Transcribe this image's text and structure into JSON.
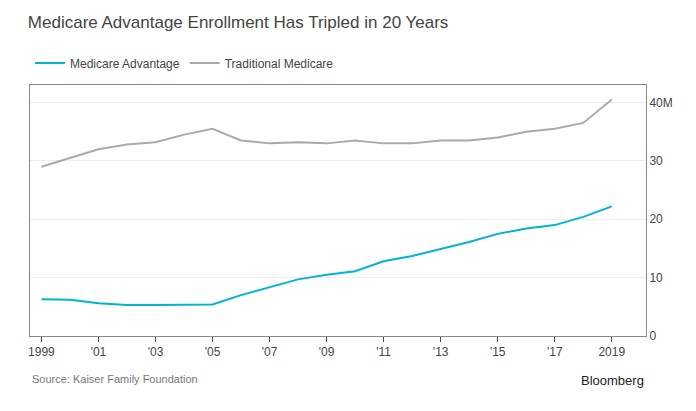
{
  "chart_data": {
    "type": "line",
    "title": "Medicare Advantage Enrollment Has Tripled in 20 Years",
    "annotations": [
      "Source: Kaiser Family Foundation",
      "Bloomberg"
    ],
    "x": [
      1999,
      2000,
      2001,
      2002,
      2003,
      2004,
      2005,
      2006,
      2007,
      2008,
      2009,
      2010,
      2011,
      2012,
      2013,
      2014,
      2015,
      2016,
      2017,
      2018,
      2019
    ],
    "series": [
      {
        "name": "Medicare Advantage",
        "color": "#00b4d8",
        "values": [
          6.3,
          6.2,
          5.6,
          5.3,
          5.3,
          5.4,
          5.4,
          7.0,
          8.3,
          9.7,
          10.5,
          11.1,
          12.8,
          13.7,
          14.9,
          16.1,
          17.5,
          18.4,
          19.0,
          20.4,
          22.2
        ]
      },
      {
        "name": "Traditional Medicare",
        "color": "#aaaaaa",
        "values": [
          29.0,
          30.5,
          32.0,
          32.8,
          33.2,
          34.5,
          35.5,
          33.5,
          33.0,
          33.2,
          33.0,
          33.5,
          33.0,
          33.0,
          33.5,
          33.5,
          34.0,
          35.0,
          35.5,
          36.5,
          40.5
        ]
      }
    ],
    "xlim": [
      1998.6,
      2020.2
    ],
    "xticks": [
      1999,
      {
        "value": 2001,
        "label": "'01"
      },
      {
        "value": 2003,
        "label": "'03"
      },
      {
        "value": 2005,
        "label": "'05"
      },
      {
        "value": 2007,
        "label": "'07"
      },
      {
        "value": 2009,
        "label": "'09"
      },
      {
        "value": 2011,
        "label": "'11"
      },
      {
        "value": 2013,
        "label": "'13"
      },
      {
        "value": 2015,
        "label": "'15"
      },
      {
        "value": 2017,
        "label": "'17"
      },
      2019
    ],
    "ylim": [
      0,
      43
    ],
    "yticks": [
      0,
      10,
      20,
      30,
      {
        "value": 40,
        "label": "40M"
      }
    ],
    "grid": true,
    "legend": "top left"
  }
}
